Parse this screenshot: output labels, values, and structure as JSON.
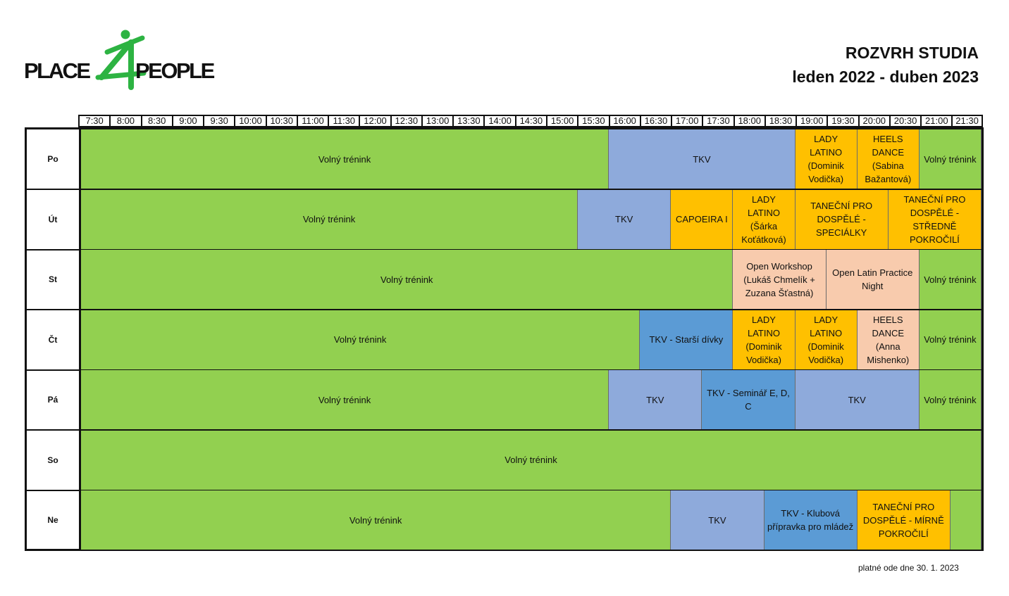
{
  "header": {
    "logo_left": "PLACE",
    "logo_mid": "4",
    "logo_right": "PEOPLE",
    "title": "ROZVRH STUDIA",
    "subtitle": "leden 2022 - duben 2023"
  },
  "hours": [
    "7:30",
    "8:00",
    "8:30",
    "9:00",
    "9:30",
    "10:00",
    "10:30",
    "11:00",
    "11:30",
    "12:00",
    "12:30",
    "13:00",
    "13:30",
    "14:00",
    "14:30",
    "15:00",
    "15:30",
    "16:00",
    "16:30",
    "17:00",
    "17:30",
    "18:00",
    "18:30",
    "19:00",
    "19:30",
    "20:00",
    "20:30",
    "21:00",
    "21:30"
  ],
  "colors": {
    "green": "#92d050",
    "blue": "#8eaadb",
    "dark_blue": "#5b9bd5",
    "orange": "#ffc000",
    "peach": "#f8cbad",
    "logo_green": "#2db342"
  },
  "schedule": [
    {
      "day": "Po",
      "slots": [
        {
          "label": "Volný trénink",
          "start": "7:30",
          "end": "16:00",
          "color": "green"
        },
        {
          "label": "TKV",
          "start": "16:00",
          "end": "19:00",
          "color": "blue"
        },
        {
          "label": "LADY LATINO (Dominik Vodička)",
          "start": "19:00",
          "end": "20:00",
          "color": "orange"
        },
        {
          "label": "HEELS DANCE (Sabina Bažantová)",
          "start": "20:00",
          "end": "21:00",
          "color": "orange"
        },
        {
          "label": "Volný trénink",
          "start": "21:00",
          "end": "22:00",
          "color": "green"
        }
      ]
    },
    {
      "day": "Út",
      "slots": [
        {
          "label": "Volný trénink",
          "start": "7:30",
          "end": "15:30",
          "color": "green"
        },
        {
          "label": "TKV",
          "start": "15:30",
          "end": "17:00",
          "color": "blue"
        },
        {
          "label": "CAPOEIRA I",
          "start": "17:00",
          "end": "18:00",
          "color": "orange"
        },
        {
          "label": "LADY LATINO (Šárka Koťátková)",
          "start": "18:00",
          "end": "19:00",
          "color": "orange"
        },
        {
          "label": "TANEČNÍ PRO DOSPĚLÉ - SPECIÁLKY",
          "start": "19:00",
          "end": "20:30",
          "color": "orange"
        },
        {
          "label": "TANEČNÍ PRO DOSPĚLÉ - STŘEDNĚ POKROČILÍ",
          "start": "20:30",
          "end": "22:00",
          "color": "orange"
        }
      ]
    },
    {
      "day": "St",
      "slots": [
        {
          "label": "Volný trénink",
          "start": "7:30",
          "end": "18:00",
          "color": "green"
        },
        {
          "label": "Open Workshop (Lukáš Chmelík + Zuzana Šťastná)",
          "start": "18:00",
          "end": "19:30",
          "color": "peach"
        },
        {
          "label": "Open Latin Practice Night",
          "start": "19:30",
          "end": "21:00",
          "color": "peach"
        },
        {
          "label": "Volný trénink",
          "start": "21:00",
          "end": "22:00",
          "color": "green"
        }
      ]
    },
    {
      "day": "Čt",
      "slots": [
        {
          "label": "Volný trénink",
          "start": "7:30",
          "end": "16:30",
          "color": "green"
        },
        {
          "label": "TKV - Starší dívky",
          "start": "16:30",
          "end": "18:00",
          "color": "dark_blue"
        },
        {
          "label": "LADY LATINO (Dominik Vodička)",
          "start": "18:00",
          "end": "19:00",
          "color": "orange"
        },
        {
          "label": "LADY LATINO (Dominik Vodička)",
          "start": "19:00",
          "end": "20:00",
          "color": "orange"
        },
        {
          "label": "HEELS DANCE (Anna Mishenko)",
          "start": "20:00",
          "end": "21:00",
          "color": "peach"
        },
        {
          "label": "Volný trénink",
          "start": "21:00",
          "end": "22:00",
          "color": "green"
        }
      ]
    },
    {
      "day": "Pá",
      "slots": [
        {
          "label": "Volný trénink",
          "start": "7:30",
          "end": "16:00",
          "color": "green"
        },
        {
          "label": "TKV",
          "start": "16:00",
          "end": "17:30",
          "color": "blue"
        },
        {
          "label": "TKV - Seminář E, D, C",
          "start": "17:30",
          "end": "19:00",
          "color": "dark_blue"
        },
        {
          "label": "TKV",
          "start": "19:00",
          "end": "21:00",
          "color": "blue"
        },
        {
          "label": "Volný trénink",
          "start": "21:00",
          "end": "22:00",
          "color": "green"
        }
      ]
    },
    {
      "day": "So",
      "slots": [
        {
          "label": "Volný trénink",
          "start": "7:30",
          "end": "22:00",
          "color": "green"
        }
      ]
    },
    {
      "day": "Ne",
      "slots": [
        {
          "label": "Volný trénink",
          "start": "7:30",
          "end": "17:00",
          "color": "green"
        },
        {
          "label": "TKV",
          "start": "17:00",
          "end": "18:30",
          "color": "blue"
        },
        {
          "label": "TKV - Klubová přípravka pro mládež",
          "start": "18:30",
          "end": "20:00",
          "color": "dark_blue"
        },
        {
          "label": "TANEČNÍ PRO DOSPĚLÉ - MÍRNĚ POKROČILÍ",
          "start": "20:00",
          "end": "21:30",
          "color": "orange"
        },
        {
          "label": "",
          "start": "21:30",
          "end": "22:00",
          "color": "green"
        }
      ]
    }
  ],
  "footer": "platné ode dne 30. 1. 2023"
}
